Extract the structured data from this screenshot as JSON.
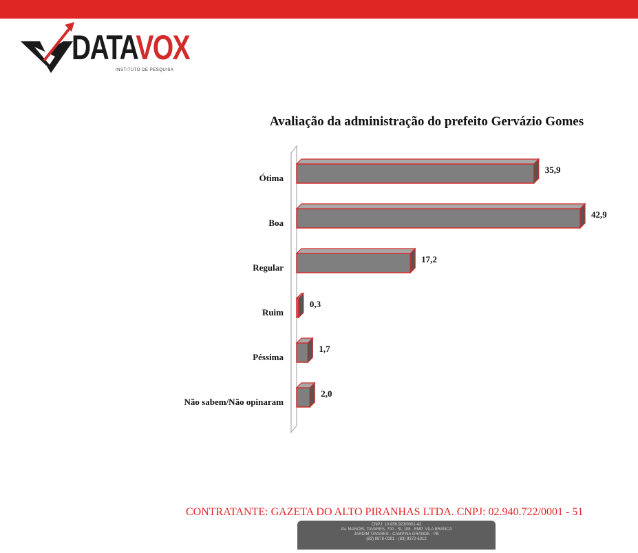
{
  "header": {
    "bar_color": "#e02525"
  },
  "logo": {
    "word_data": "DATA",
    "word_vox": "VOX",
    "tagline": "INSTITUTO DE PESQUISA"
  },
  "chart_data": {
    "type": "bar",
    "orientation": "horizontal",
    "title": "Avaliação da administração do prefeito Gervázio Gomes",
    "categories": [
      "Ótima",
      "Boa",
      "Regular",
      "Ruim",
      "Péssima",
      "Não sabem/Não opinaram"
    ],
    "values": [
      35.9,
      42.9,
      17.2,
      0.3,
      1.7,
      2.0
    ],
    "value_labels": [
      "35,9",
      "42,9",
      "17,2",
      "0,3",
      "1,7",
      "2,0"
    ],
    "xlim": [
      0,
      42.9
    ],
    "grid": false,
    "legend": "none",
    "bar_color": "#7f7f7f",
    "bar_edge_color": "#d42a2a"
  },
  "footer": {
    "contratante": "CONTRATANTE: GAZETA DO ALTO PIRANHAS LTDA. CNPJ: 02.940.722/0001 - 51",
    "address_lines": [
      "CNPJ: 10.856.923/0001-42",
      "AV. MANOEL TAVARES, 700 - SL 108 - EMP. VILA BRANCA",
      "JARDIM TAVARES - CAMPINA GRANDE - PB",
      "(83) 8878-0391 - (83) 9372-6312"
    ]
  }
}
